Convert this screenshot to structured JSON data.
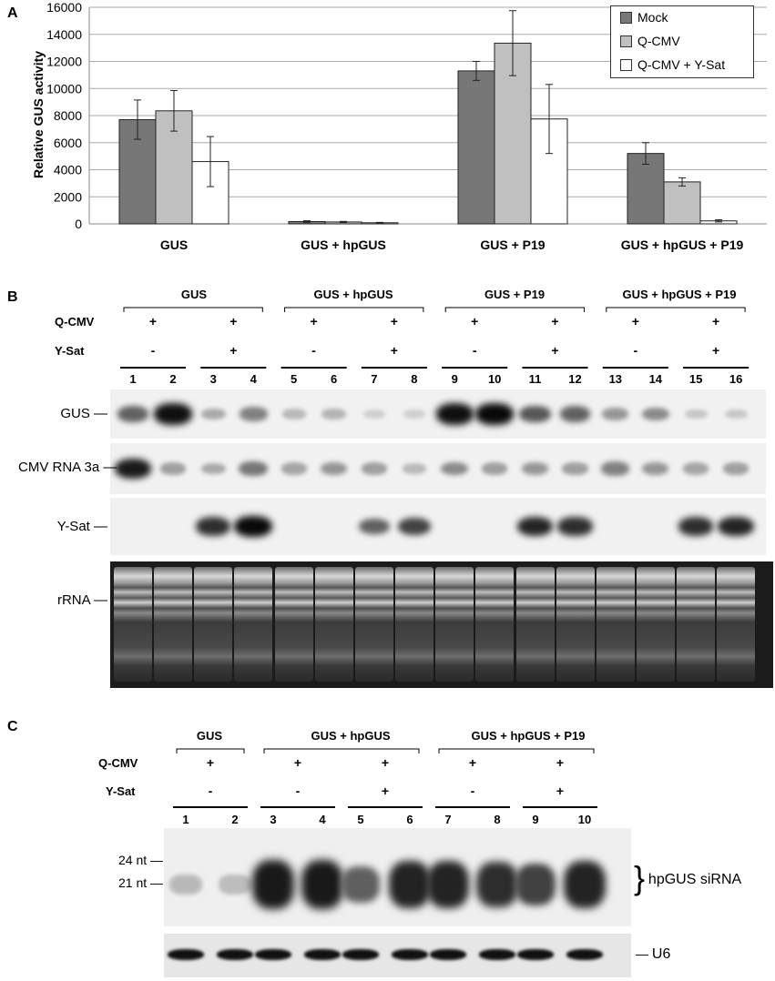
{
  "panel_a": {
    "label": "A",
    "chart_data": {
      "type": "bar",
      "ylabel": "Relative GUS activity",
      "ylim": [
        0,
        16000
      ],
      "yticks": [
        "0",
        "2000",
        "4000",
        "6000",
        "8000",
        "10000",
        "12000",
        "14000",
        "16000"
      ],
      "grid": true,
      "legend_position": "top-right",
      "categories": [
        "GUS",
        "GUS + hpGUS",
        "GUS + P19",
        "GUS + hpGUS + P19"
      ],
      "series": [
        {
          "name": "Mock",
          "color": "#777777",
          "values": [
            7700,
            170,
            11300,
            5200
          ],
          "errors": [
            1450,
            60,
            700,
            800
          ]
        },
        {
          "name": "Q-CMV",
          "color": "#c0c0c0",
          "values": [
            8350,
            140,
            13350,
            3100
          ],
          "errors": [
            1500,
            40,
            2400,
            300
          ]
        },
        {
          "name": "Q-CMV + Y-Sat",
          "color": "#ffffff",
          "values": [
            4600,
            80,
            7750,
            220
          ],
          "errors": [
            1850,
            30,
            2550,
            80
          ]
        }
      ]
    }
  },
  "panel_b": {
    "label": "B",
    "conditions": [
      "GUS",
      "GUS + hpGUS",
      "GUS + P19",
      "GUS + hpGUS  + P19"
    ],
    "row_labels": {
      "qcmv": "Q-CMV",
      "ysat": "Y-Sat"
    },
    "qcmv": [
      "+",
      "+",
      "+",
      "+",
      "+",
      "+",
      "+",
      "+"
    ],
    "ysat": [
      "-",
      "+",
      "-",
      "+",
      "-",
      "+",
      "-",
      "+"
    ],
    "lanes": [
      "1",
      "2",
      "3",
      "4",
      "5",
      "6",
      "7",
      "8",
      "9",
      "10",
      "11",
      "12",
      "13",
      "14",
      "15",
      "16"
    ],
    "blots": [
      {
        "label": "GUS",
        "intensity": [
          0.55,
          0.95,
          0.2,
          0.4,
          0.12,
          0.15,
          0.02,
          0.02,
          0.95,
          0.98,
          0.6,
          0.55,
          0.3,
          0.35,
          0.06,
          0.06
        ]
      },
      {
        "label": "CMV RNA 3a",
        "intensity": [
          0.9,
          0.25,
          0.2,
          0.45,
          0.22,
          0.3,
          0.25,
          0.12,
          0.35,
          0.25,
          0.3,
          0.25,
          0.4,
          0.3,
          0.22,
          0.25
        ]
      },
      {
        "label": "Y-Sat",
        "intensity": [
          0,
          0,
          0.8,
          0.98,
          0,
          0,
          0.55,
          0.7,
          0,
          0,
          0.85,
          0.8,
          0,
          0,
          0.8,
          0.85
        ]
      }
    ],
    "rrna_label": "rRNA"
  },
  "panel_c": {
    "label": "C",
    "conditions": [
      "GUS",
      "GUS + hpGUS",
      "GUS + hpGUS  + P19"
    ],
    "row_labels": {
      "qcmv": "Q-CMV",
      "ysat": "Y-Sat"
    },
    "qcmv": [
      "+",
      "+",
      "+",
      "+",
      "+"
    ],
    "ysat": [
      "-",
      "-",
      "+",
      "-",
      "+"
    ],
    "lanes": [
      "1",
      "2",
      "3",
      "4",
      "5",
      "6",
      "7",
      "8",
      "9",
      "10"
    ],
    "size_markers": [
      "24 nt",
      "21 nt"
    ],
    "sirna_label": "hpGUS siRNA",
    "sirna_intensity": [
      0.1,
      0.08,
      0.9,
      0.9,
      0.55,
      0.85,
      0.85,
      0.8,
      0.7,
      0.85
    ],
    "u6_label": "U6"
  }
}
